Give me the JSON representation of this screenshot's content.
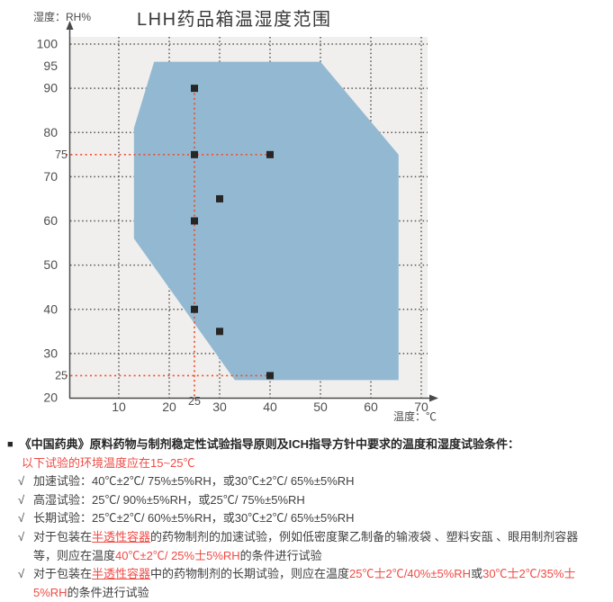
{
  "chart_data": {
    "type": "area",
    "title": "LHH药品箱温湿度范围",
    "xlabel": "温度：℃",
    "ylabel": "湿度：RH%",
    "xlim": [
      0,
      72
    ],
    "ylim": [
      20,
      102
    ],
    "grid": true,
    "x_ticks": [
      10,
      20,
      30,
      40,
      50,
      60,
      70
    ],
    "y_ticks": [
      100,
      95,
      90,
      80,
      70,
      60,
      50,
      40,
      30,
      20
    ],
    "special_x_ticks": [
      25
    ],
    "special_y_ticks": [
      75,
      25
    ],
    "x_gridlines": [
      10,
      20,
      30,
      40,
      50,
      60,
      70
    ],
    "y_gridlines": [
      100,
      90,
      80,
      70,
      60,
      50,
      40,
      30
    ],
    "safe_region_polygon": [
      [
        17,
        96
      ],
      [
        50,
        96
      ],
      [
        65.5,
        75
      ],
      [
        65.5,
        24
      ],
      [
        33,
        24
      ],
      [
        13,
        56
      ],
      [
        13,
        81
      ]
    ],
    "points": [
      [
        25,
        90
      ],
      [
        25,
        75
      ],
      [
        40,
        75
      ],
      [
        30,
        65
      ],
      [
        25,
        60
      ],
      [
        25,
        40
      ],
      [
        30,
        35
      ],
      [
        40,
        25
      ]
    ],
    "red_guides": {
      "vertical": {
        "x": 25,
        "y_from": 20,
        "y_to": 90
      },
      "horizontal": [
        {
          "y": 75,
          "x_to": 40
        },
        {
          "y": 25,
          "x_to": 40
        }
      ]
    },
    "colors": {
      "region_fill": "#93b9d2",
      "plot_bg": "#f0efed",
      "gridline": "#555555",
      "axis": "#4a4a4a",
      "tick_label": "#4f4f4f",
      "red_guide": "#ee4e29",
      "point": "#262626",
      "red_text": "#ef4b45"
    }
  },
  "notes": {
    "heading": {
      "bullet": "■",
      "text": "《中国药典》原料药物与制剂稳定性试验指导原则及ICH指导方针中要求的温度和湿度试验条件："
    },
    "check_mark": "√",
    "lines": [
      {
        "style": "plain",
        "segments": [
          {
            "text": "以下试验的环境温度应在15~25℃",
            "red": true
          }
        ]
      },
      {
        "style": "marker",
        "segments": [
          {
            "text": "加速试验：40℃±2℃/ 75%±5%RH，或30℃±2℃/ 65%±5%RH"
          }
        ]
      },
      {
        "style": "marker",
        "segments": [
          {
            "text": "高湿试验：25℃/ 90%±5%RH，或25℃/ 75%±5%RH"
          }
        ]
      },
      {
        "style": "marker",
        "segments": [
          {
            "text": "长期试验：25℃±2℃/ 60%±5%RH，或30℃±2℃/ 65%±5%RH"
          }
        ]
      },
      {
        "style": "marker",
        "segments": [
          {
            "text": "对于包装在"
          },
          {
            "text": "半透性容器",
            "red": true,
            "underline": true
          },
          {
            "text": "的药物制剂的加速试验，例如低密度聚乙制备的输液袋 、塑料安瓿 、眼用制剂容器"
          }
        ]
      },
      {
        "style": "cont",
        "segments": [
          {
            "text": "等，则应在温度"
          },
          {
            "text": "40℃±2℃/ 25%士5%RH",
            "red": true
          },
          {
            "text": "的条件进行试验"
          }
        ]
      },
      {
        "style": "marker",
        "segments": [
          {
            "text": "对于包装在"
          },
          {
            "text": "半透性容器",
            "red": true,
            "underline": true
          },
          {
            "text": "中的药物制剂的长期试验，则应在温度"
          },
          {
            "text": "25℃士2℃/40%±5%RH",
            "red": true
          },
          {
            "text": "或"
          },
          {
            "text": "30℃士2℃/35%士",
            "red": true
          }
        ]
      },
      {
        "style": "cont",
        "segments": [
          {
            "text": "5%RH",
            "red": true
          },
          {
            "text": "的条件进行试验"
          }
        ]
      }
    ]
  }
}
